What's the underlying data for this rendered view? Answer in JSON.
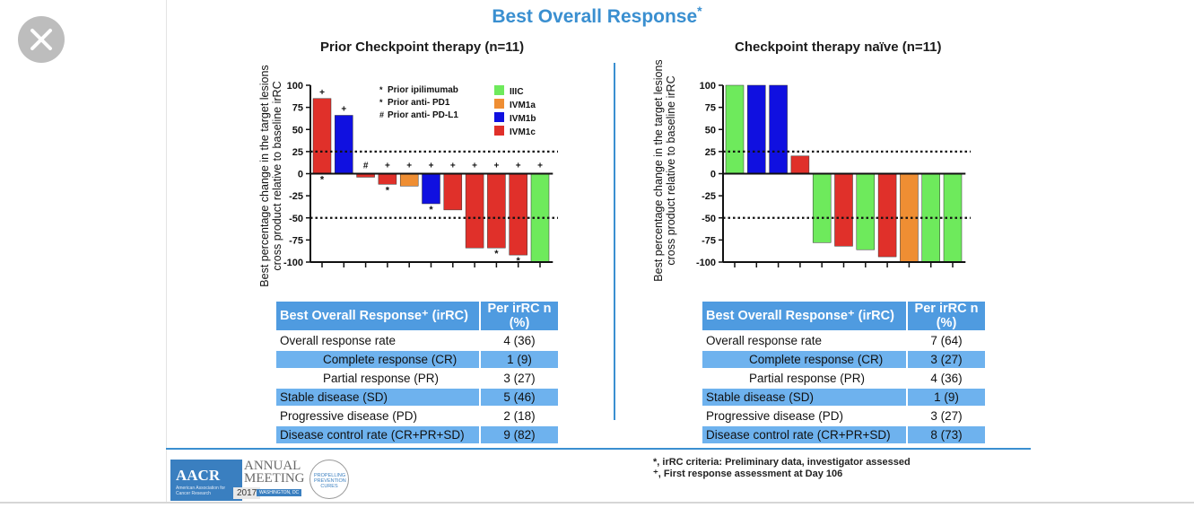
{
  "title": "Best Overall Response",
  "title_mark": "*",
  "close_icon": "close-icon",
  "colors": {
    "IIIC": "#6eea5c",
    "IVM1a": "#ef8e33",
    "IVM1b": "#1010e0",
    "IVM1c": "#e0302a",
    "accent": "#3a8fd0"
  },
  "left": {
    "subtitle": "Prior Checkpoint therapy (n=11)",
    "ylabel_line1": "Best percentage change in the target lesions",
    "ylabel_line2": "cross product relative to baseline irRC",
    "notes": [
      "Prior ipilimumab",
      "Prior anti- PD1",
      "Prior anti- PD-L1"
    ],
    "note_marks": [
      "*",
      "*",
      "#"
    ],
    "legend": [
      "IIIC",
      "IVM1a",
      "IVM1b",
      "IVM1c"
    ],
    "table": {
      "header": [
        "Best Overall Response⁺ (irRC)",
        "Per irRC n (%)"
      ],
      "rows": [
        [
          "Overall response rate",
          "4 (36)"
        ],
        [
          "Complete response (CR)",
          "1   (9)"
        ],
        [
          "Partial response (PR)",
          "3 (27)"
        ],
        [
          "Stable disease (SD)",
          "5 (46)"
        ],
        [
          "Progressive disease (PD)",
          "2 (18)"
        ],
        [
          "Disease control rate (CR+PR+SD)",
          "9 (82)"
        ]
      ]
    }
  },
  "right": {
    "subtitle": "Checkpoint therapy naïve (n=11)",
    "ylabel_line1": "Best percentage change in the target lesions",
    "ylabel_line2": "cross product relative to baseline irRC",
    "table": {
      "header": [
        "Best Overall Response⁺ (irRC)",
        "Per irRC n (%)"
      ],
      "rows": [
        [
          "Overall response rate",
          "7 (64)"
        ],
        [
          "Complete response (CR)",
          "3 (27)"
        ],
        [
          "Partial response (PR)",
          "4 (36)"
        ],
        [
          "Stable disease (SD)",
          "1  (9)"
        ],
        [
          "Progressive disease (PD)",
          "3 (27)"
        ],
        [
          "Disease control rate (CR+PR+SD)",
          "8 (73)"
        ]
      ]
    }
  },
  "chart_data": [
    {
      "type": "bar",
      "title": "Prior Checkpoint therapy (n=11)",
      "ylabel": "Best percentage change in the target lesions cross product relative to baseline irRC",
      "ylim": [
        -100,
        100
      ],
      "yticks": [
        100,
        75,
        50,
        25,
        0,
        -25,
        -50,
        -75,
        -100
      ],
      "reference_lines": [
        25,
        -50
      ],
      "values": [
        85,
        66,
        -4,
        -12,
        -14,
        -34,
        -41,
        -84,
        -84,
        -92,
        -100
      ],
      "stages": [
        "IVM1c",
        "IVM1b",
        "IVM1c",
        "IVM1c",
        "IVM1a",
        "IVM1b",
        "IVM1c",
        "IVM1c",
        "IVM1c",
        "IVM1c",
        "IIIC"
      ],
      "top_marks": [
        "+",
        "+",
        "#",
        "+",
        "+",
        "+",
        "+",
        "+",
        "+",
        "+",
        "+"
      ],
      "bottom_marks": [
        "*",
        "",
        "",
        "*",
        "",
        "*",
        "",
        "",
        "*",
        "*",
        ""
      ],
      "legend": [
        "IIIC",
        "IVM1a",
        "IVM1b",
        "IVM1c"
      ]
    },
    {
      "type": "bar",
      "title": "Checkpoint therapy naïve (n=11)",
      "ylabel": "Best percentage change in the target lesions cross product relative to baseline irRC",
      "ylim": [
        -100,
        100
      ],
      "yticks": [
        100,
        75,
        50,
        25,
        0,
        -25,
        -50,
        -75,
        -100
      ],
      "reference_lines": [
        25,
        -50
      ],
      "values": [
        100,
        100,
        100,
        20,
        -78,
        -82,
        -86,
        -94,
        -100,
        -100,
        -100
      ],
      "stages": [
        "IIIC",
        "IVM1b",
        "IVM1b",
        "IVM1c",
        "IIIC",
        "IVM1c",
        "IIIC",
        "IVM1c",
        "IVM1a",
        "IIIC",
        "IIIC"
      ]
    }
  ],
  "footnotes": [
    "*, irRC criteria: Preliminary data, investigator assessed",
    "⁺, First response assessment at Day 106"
  ],
  "logo": {
    "org": "AACR",
    "org_sub": "American Association for Cancer Research",
    "event_line1": "ANNUAL",
    "event_line2": "MEETING",
    "year": "2017",
    "city": "WASHINGTON, DC",
    "seal": "PROPELLING PREVENTION CURES"
  }
}
